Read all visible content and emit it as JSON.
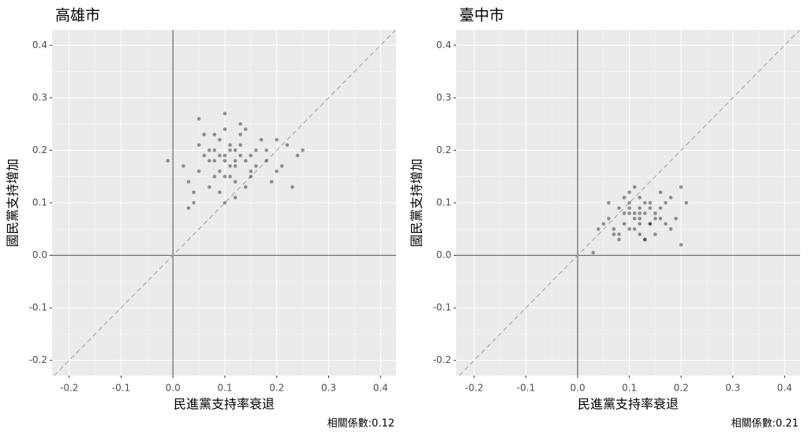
{
  "chart_data": [
    {
      "type": "scatter",
      "title": "高雄市",
      "x_label": "民進黨支持率衰退",
      "y_label": "國民黨支持增加",
      "annotation": "相關係數:0.12",
      "xlim": [
        -0.233,
        0.43
      ],
      "ylim": [
        -0.229,
        0.429
      ],
      "xticks": [
        -0.2,
        -0.1,
        {
          "value": 0,
          "label": "0.0"
        },
        0.1,
        0.2,
        0.3,
        0.4
      ],
      "yticks": [
        -0.2,
        -0.1,
        {
          "value": 0,
          "label": "0.0"
        },
        0.1,
        0.2,
        0.3,
        0.4
      ],
      "grid": true,
      "color": "#000000",
      "x": [
        0.1,
        0.08,
        0.12,
        0.05,
        0.15,
        0.09,
        0.11,
        0.13,
        0.07,
        0.18,
        0.03,
        0.2,
        0.1,
        0.06,
        0.14,
        0.12,
        0.08,
        0.16,
        0.04,
        0.22,
        0.1,
        0.11,
        0.09,
        0.13,
        0.02,
        0.24,
        0.07,
        0.15,
        0.19,
        0.05,
        0.1,
        0.12,
        0.17,
        0.08,
        0.11,
        0.14,
        0.06,
        0.21,
        0.09,
        0.13,
        -0.01,
        0.25,
        0.04,
        0.1,
        0.16,
        0.12,
        0.03,
        0.18,
        0.07,
        0.11,
        0.13,
        0.09,
        0.2,
        0.05,
        0.15,
        0.1,
        0.08,
        0.12,
        0.23,
        0.14
      ],
      "values": [
        0.18,
        0.2,
        0.17,
        0.16,
        0.19,
        0.22,
        0.15,
        0.21,
        0.18,
        0.2,
        0.14,
        0.16,
        0.24,
        0.19,
        0.13,
        0.18,
        0.23,
        0.17,
        0.1,
        0.21,
        0.15,
        0.2,
        0.12,
        0.25,
        0.17,
        0.19,
        0.2,
        0.16,
        0.14,
        0.26,
        0.19,
        0.11,
        0.22,
        0.15,
        0.21,
        0.18,
        0.23,
        0.17,
        0.16,
        0.19,
        0.18,
        0.2,
        0.12,
        0.27,
        0.2,
        0.14,
        0.09,
        0.18,
        0.13,
        0.17,
        0.23,
        0.19,
        0.22,
        0.21,
        0.15,
        0.1,
        0.18,
        0.2,
        0.13,
        0.24
      ]
    },
    {
      "type": "scatter",
      "title": "臺中市",
      "x_label": "民進黨支持率衰退",
      "y_label": "國民黨支持增加",
      "annotation": "相關係數:0.21",
      "xlim": [
        -0.235,
        0.43
      ],
      "ylim": [
        -0.229,
        0.429
      ],
      "xticks": [
        -0.2,
        -0.1,
        {
          "value": 0,
          "label": "0.0"
        },
        0.1,
        0.2,
        0.3,
        0.4
      ],
      "yticks": [
        -0.2,
        -0.1,
        {
          "value": 0,
          "label": "0.0"
        },
        0.1,
        0.2,
        0.3,
        0.4
      ],
      "grid": true,
      "color": "#000000",
      "x": [
        0.12,
        0.1,
        0.14,
        0.08,
        0.16,
        0.11,
        0.13,
        0.09,
        0.15,
        0.18,
        0.06,
        0.2,
        0.12,
        0.1,
        0.14,
        0.07,
        0.17,
        0.11,
        0.13,
        0.05,
        0.21,
        0.12,
        0.09,
        0.15,
        0.03,
        0.19,
        0.1,
        0.16,
        0.08,
        0.14,
        0.12,
        0.11,
        0.13,
        0.04,
        0.2,
        0.1,
        0.15,
        0.07,
        0.17,
        0.12,
        0.09,
        0.14,
        0.06,
        0.18,
        0.11,
        0.13,
        0.1,
        0.16,
        0.08,
        0.12
      ],
      "values": [
        0.07,
        0.08,
        0.06,
        0.09,
        0.07,
        0.05,
        0.1,
        0.06,
        0.08,
        0.11,
        0.07,
        0.13,
        0.04,
        0.12,
        0.09,
        0.05,
        0.06,
        0.08,
        0.03,
        0.06,
        0.1,
        0.09,
        0.11,
        0.04,
        0.005,
        0.07,
        0.05,
        0.12,
        0.03,
        0.1,
        0.06,
        0.13,
        0.08,
        0.05,
        0.02,
        0.09,
        0.07,
        0.04,
        0.1,
        0.11,
        0.08,
        0.06,
        0.1,
        0.05,
        0.07,
        0.03,
        0.1,
        0.09,
        0.04,
        0.08
      ]
    }
  ]
}
